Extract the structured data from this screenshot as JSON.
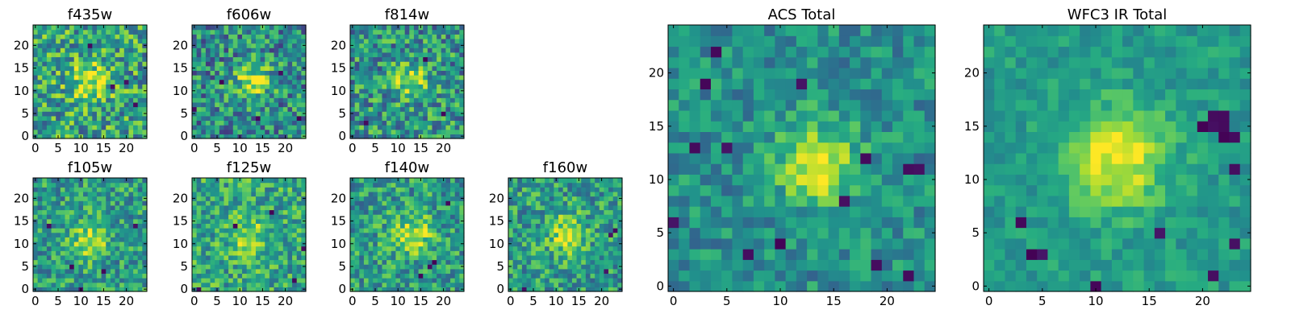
{
  "chart_data": {
    "type": "heatmap",
    "colormap": "viridis",
    "panels": [
      {
        "key": "f435w",
        "title": "f435w",
        "grid": 25,
        "xticks": [
          0,
          5,
          10,
          15,
          20
        ],
        "yticks": [
          0,
          5,
          10,
          15,
          20
        ],
        "xlim": [
          0,
          24
        ],
        "ylim": [
          0,
          24
        ],
        "source_center": [
          12,
          12
        ],
        "peak_sigma": 3.0,
        "peak_amp": 0.35,
        "base": 0.58,
        "noise": 0.32,
        "dark_pixels": [
          [
            17,
            11
          ],
          [
            20,
            12
          ],
          [
            12,
            20
          ],
          [
            22,
            7
          ]
        ]
      },
      {
        "key": "f606w",
        "title": "f606w",
        "grid": 25,
        "xticks": [
          0,
          5,
          10,
          15,
          20
        ],
        "yticks": [
          0,
          5,
          10,
          15,
          20
        ],
        "xlim": [
          0,
          24
        ],
        "ylim": [
          0,
          24
        ],
        "source_center": [
          13,
          12
        ],
        "peak_sigma": 2.8,
        "peak_amp": 0.45,
        "base": 0.48,
        "noise": 0.3,
        "dark_pixels": [
          [
            0,
            6
          ],
          [
            6,
            12
          ],
          [
            19,
            14
          ],
          [
            14,
            4
          ],
          [
            23,
            4
          ]
        ]
      },
      {
        "key": "f814w",
        "title": "f814w",
        "grid": 25,
        "xticks": [
          0,
          5,
          10,
          15,
          20
        ],
        "yticks": [
          0,
          5,
          10,
          15,
          20
        ],
        "xlim": [
          0,
          24
        ],
        "ylim": [
          0,
          24
        ],
        "source_center": [
          13,
          12
        ],
        "peak_sigma": 2.5,
        "peak_amp": 0.4,
        "base": 0.52,
        "noise": 0.3,
        "dark_pixels": [
          [
            3,
            3
          ],
          [
            16,
            17
          ],
          [
            20,
            5
          ]
        ]
      },
      {
        "key": "f105w",
        "title": "f105w",
        "grid": 25,
        "xticks": [
          0,
          5,
          10,
          15,
          20
        ],
        "yticks": [
          0,
          5,
          10,
          15,
          20
        ],
        "xlim": [
          0,
          24
        ],
        "ylim": [
          0,
          24
        ],
        "source_center": [
          12,
          11
        ],
        "peak_sigma": 3.0,
        "peak_amp": 0.35,
        "base": 0.55,
        "noise": 0.25,
        "dark_pixels": [
          [
            10,
            0
          ],
          [
            3,
            14
          ],
          [
            22,
            14
          ],
          [
            8,
            5
          ],
          [
            15,
            4
          ]
        ]
      },
      {
        "key": "f125w",
        "title": "f125w",
        "grid": 25,
        "xticks": [
          0,
          5,
          10,
          15,
          20
        ],
        "yticks": [
          0,
          5,
          10,
          15,
          20
        ],
        "xlim": [
          0,
          24
        ],
        "ylim": [
          0,
          24
        ],
        "source_center": [
          12,
          12
        ],
        "peak_sigma": 3.0,
        "peak_amp": 0.25,
        "base": 0.6,
        "noise": 0.25,
        "dark_pixels": [
          [
            1,
            0
          ],
          [
            22,
            2
          ],
          [
            9,
            14
          ],
          [
            17,
            17
          ],
          [
            24,
            9
          ]
        ]
      },
      {
        "key": "f140w",
        "title": "f140w",
        "grid": 25,
        "xticks": [
          0,
          5,
          10,
          15,
          20
        ],
        "yticks": [
          0,
          5,
          10,
          15,
          20
        ],
        "xlim": [
          0,
          24
        ],
        "ylim": [
          0,
          24
        ],
        "source_center": [
          13,
          12
        ],
        "peak_sigma": 3.2,
        "peak_amp": 0.35,
        "base": 0.55,
        "noise": 0.25,
        "dark_pixels": [
          [
            17,
            5
          ],
          [
            18,
            6
          ],
          [
            15,
            3
          ],
          [
            21,
            19
          ]
        ]
      },
      {
        "key": "f160w",
        "title": "f160w",
        "grid": 25,
        "xticks": [
          0,
          5,
          10,
          15,
          20
        ],
        "yticks": [
          0,
          5,
          10,
          15,
          20
        ],
        "xlim": [
          0,
          24
        ],
        "ylim": [
          0,
          24
        ],
        "source_center": [
          12,
          12
        ],
        "peak_sigma": 3.0,
        "peak_amp": 0.35,
        "base": 0.55,
        "noise": 0.25,
        "dark_pixels": [
          [
            22,
            12
          ],
          [
            23,
            13
          ],
          [
            21,
            4
          ],
          [
            3,
            0
          ]
        ]
      },
      {
        "key": "acs_total",
        "title": "ACS Total",
        "grid": 25,
        "xticks": [
          0,
          5,
          10,
          15,
          20
        ],
        "yticks": [
          0,
          5,
          10,
          15,
          20
        ],
        "xlim": [
          0,
          24
        ],
        "ylim": [
          0,
          24
        ],
        "source_center": [
          13.5,
          11.5
        ],
        "peak_sigma": 2.6,
        "peak_amp": 0.5,
        "base": 0.5,
        "noise": 0.18,
        "dark_pixels": [
          [
            12,
            19
          ],
          [
            7,
            3
          ],
          [
            10,
            4
          ],
          [
            19,
            2
          ],
          [
            18,
            12
          ],
          [
            22,
            11
          ],
          [
            23,
            11
          ],
          [
            3,
            19
          ],
          [
            0,
            6
          ],
          [
            16,
            8
          ],
          [
            5,
            13
          ],
          [
            2,
            13
          ],
          [
            4,
            22
          ],
          [
            22,
            1
          ]
        ]
      },
      {
        "key": "wfc3_total",
        "title": "WFC3 IR Total",
        "grid": 25,
        "xticks": [
          0,
          5,
          10,
          15,
          20
        ],
        "yticks": [
          0,
          5,
          10,
          15,
          20
        ],
        "xlim": [
          0,
          24
        ],
        "ylim": [
          0,
          24
        ],
        "source_center": [
          12,
          12
        ],
        "peak_sigma": 3.2,
        "peak_amp": 0.45,
        "base": 0.55,
        "noise": 0.12,
        "dark_pixels": [
          [
            21,
            15
          ],
          [
            22,
            15
          ],
          [
            22,
            14
          ],
          [
            23,
            14
          ],
          [
            20,
            15
          ],
          [
            21,
            16
          ],
          [
            22,
            16
          ],
          [
            10,
            0
          ],
          [
            4,
            3
          ],
          [
            5,
            3
          ],
          [
            3,
            6
          ],
          [
            23,
            11
          ],
          [
            23,
            4
          ],
          [
            21,
            1
          ],
          [
            16,
            5
          ]
        ]
      }
    ]
  }
}
